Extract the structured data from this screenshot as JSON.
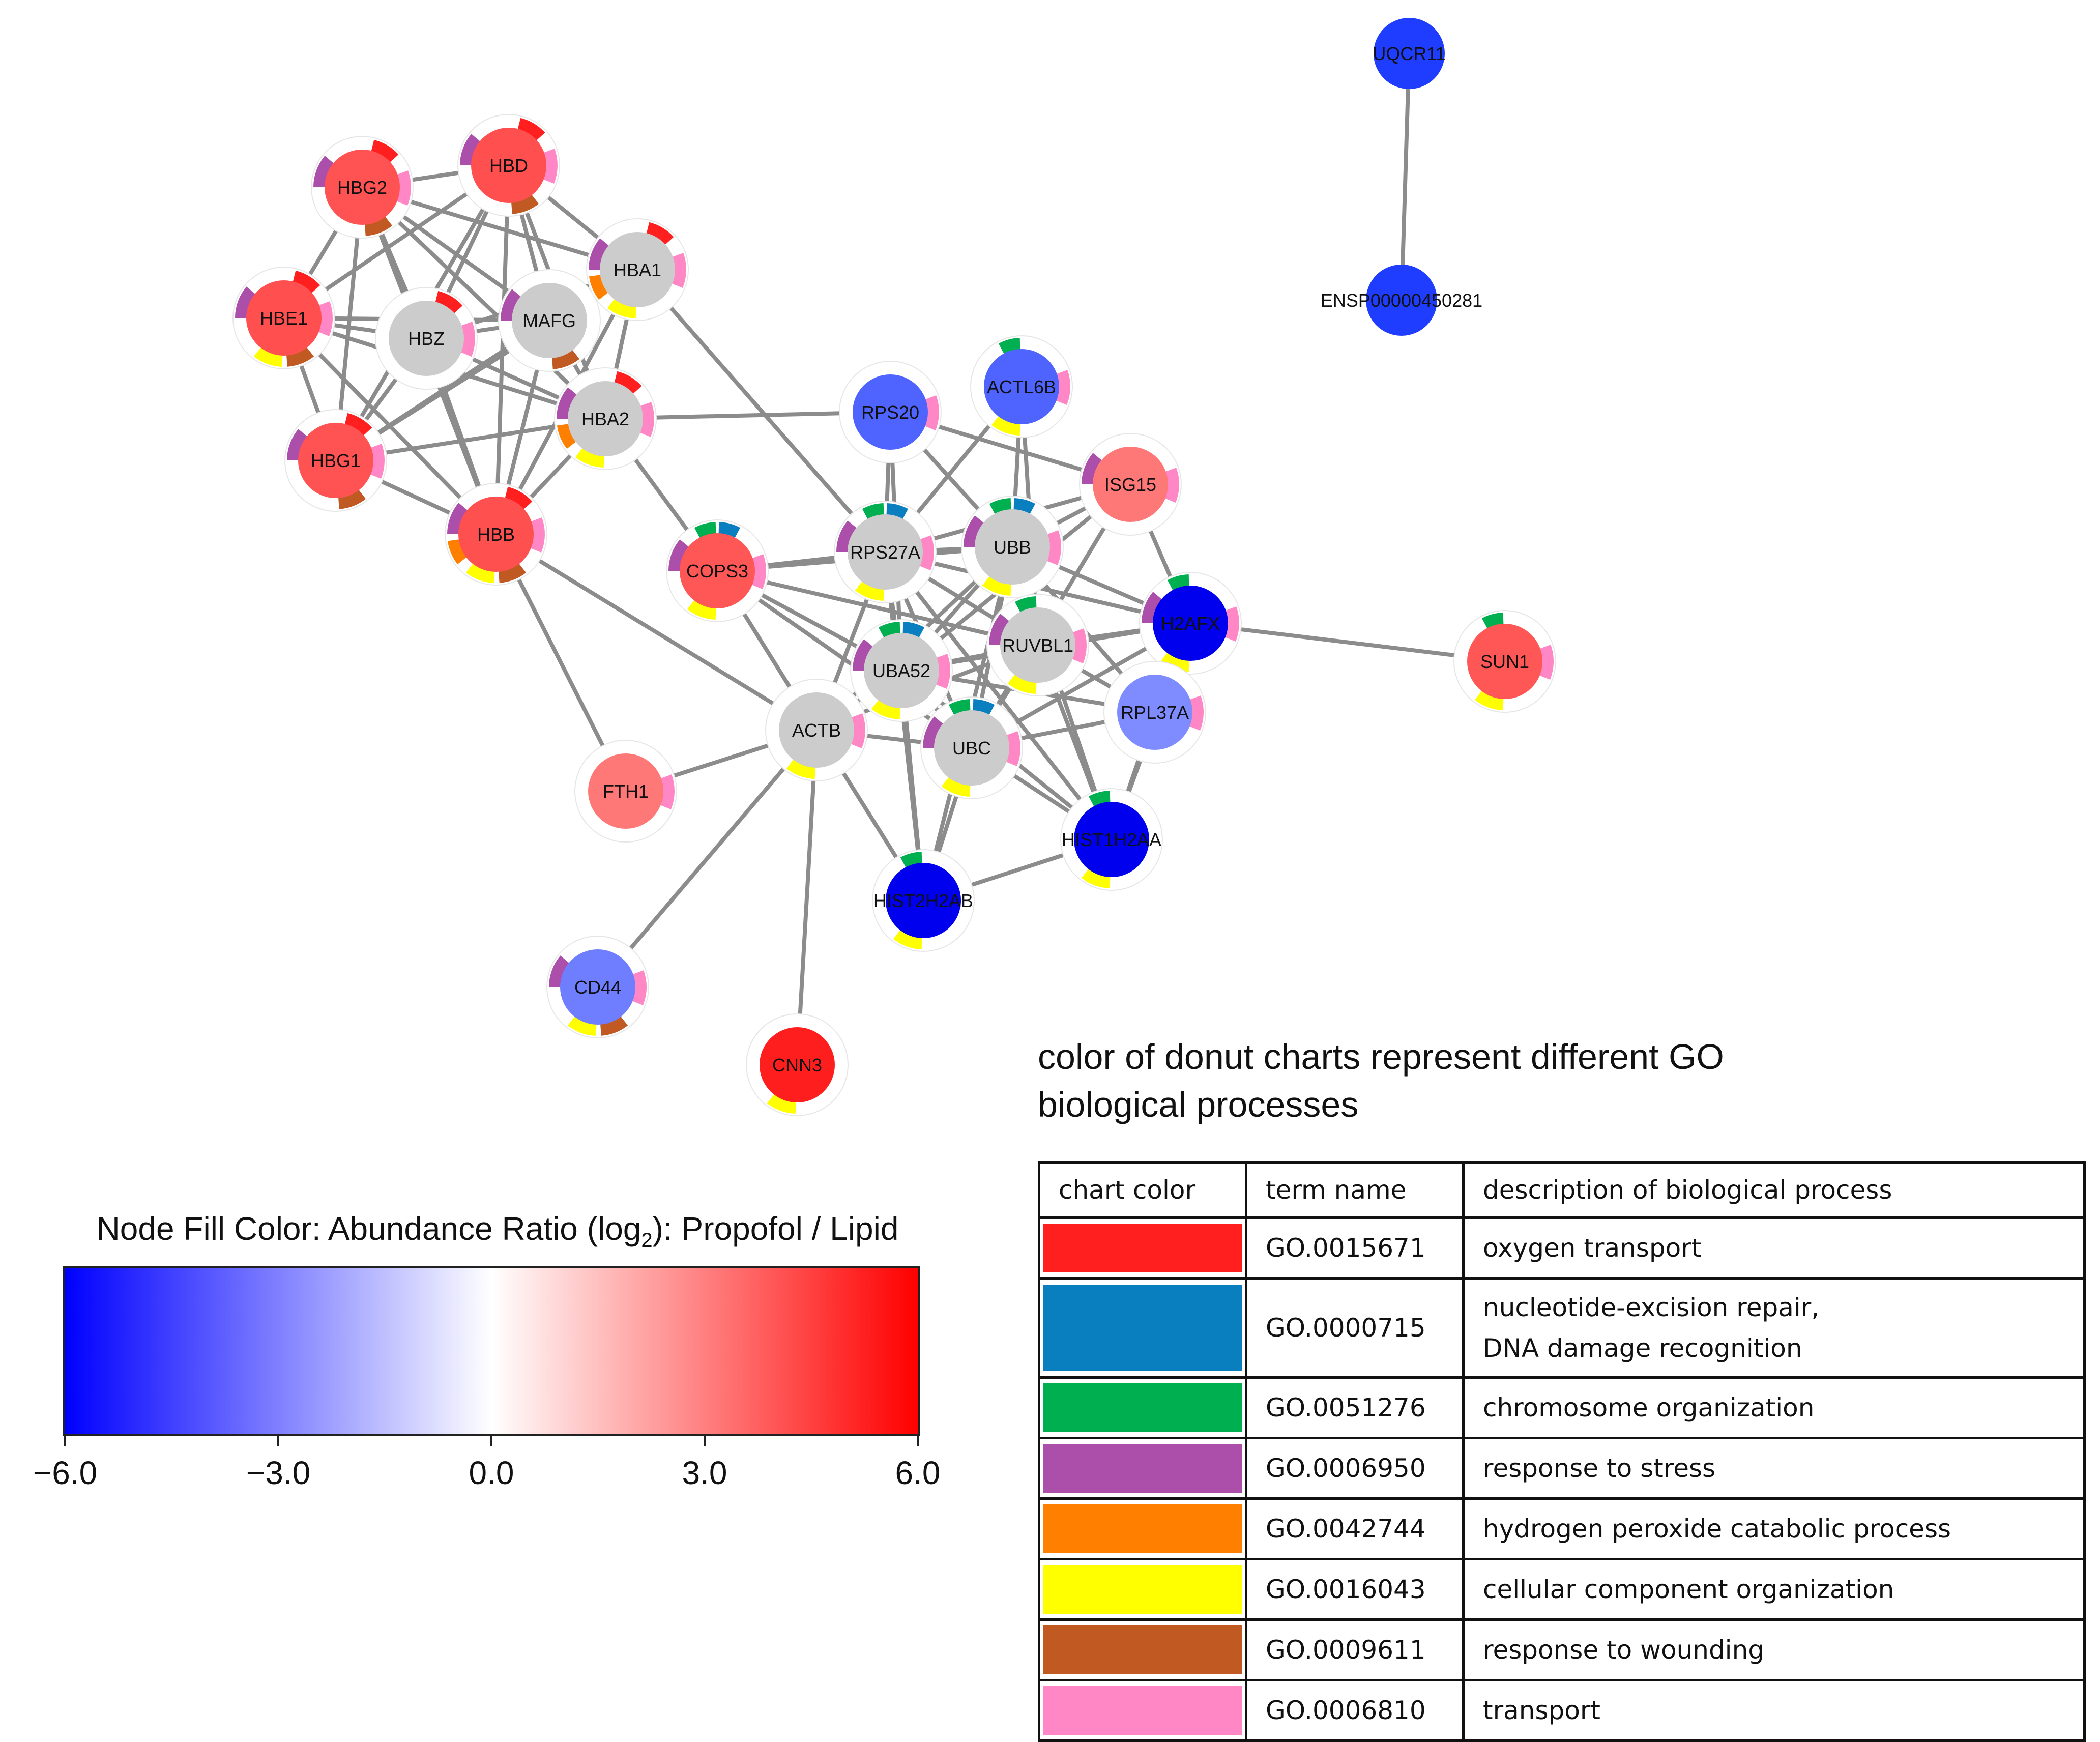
{
  "network": {
    "nodes": [
      {
        "id": "HBD",
        "color": "#ff4f4f",
        "go": [
          "GO.0015671",
          "GO.0006950",
          "GO.0009611",
          "GO.0006810"
        ]
      },
      {
        "id": "HBG2",
        "color": "#ff5252",
        "go": [
          "GO.0015671",
          "GO.0006950",
          "GO.0009611",
          "GO.0006810"
        ]
      },
      {
        "id": "HBE1",
        "color": "#ff4f4f",
        "go": [
          "GO.0015671",
          "GO.0006950",
          "GO.0016043",
          "GO.0009611",
          "GO.0006810"
        ]
      },
      {
        "id": "HBZ",
        "color": "#cccccc",
        "go": [
          "GO.0015671",
          "GO.0006810"
        ]
      },
      {
        "id": "MAFG",
        "color": "#cccccc",
        "go": [
          "GO.0006950",
          "GO.0009611"
        ]
      },
      {
        "id": "HBA1",
        "color": "#cccccc",
        "go": [
          "GO.0015671",
          "GO.0006950",
          "GO.0042744",
          "GO.0016043",
          "GO.0006810"
        ]
      },
      {
        "id": "HBG1",
        "color": "#ff5252",
        "go": [
          "GO.0015671",
          "GO.0006950",
          "GO.0009611",
          "GO.0006810"
        ]
      },
      {
        "id": "HBA2",
        "color": "#cccccc",
        "go": [
          "GO.0015671",
          "GO.0006950",
          "GO.0042744",
          "GO.0016043",
          "GO.0006810"
        ]
      },
      {
        "id": "HBB",
        "color": "#ff5050",
        "go": [
          "GO.0015671",
          "GO.0006950",
          "GO.0042744",
          "GO.0016043",
          "GO.0009611",
          "GO.0006810"
        ]
      },
      {
        "id": "RPS20",
        "color": "#4f64ff",
        "go": [
          "GO.0006810"
        ]
      },
      {
        "id": "ACTL6B",
        "color": "#4f64ff",
        "go": [
          "GO.0051276",
          "GO.0016043",
          "GO.0006810"
        ]
      },
      {
        "id": "ISG15",
        "color": "#ff7878",
        "go": [
          "GO.0006950",
          "GO.0006810"
        ]
      },
      {
        "id": "COPS3",
        "color": "#ff5656",
        "go": [
          "GO.0051276",
          "GO.0000715",
          "GO.0006950",
          "GO.0016043",
          "GO.0006810"
        ]
      },
      {
        "id": "RPS27A",
        "color": "#cccccc",
        "go": [
          "GO.0051276",
          "GO.0000715",
          "GO.0006950",
          "GO.0016043",
          "GO.0006810"
        ]
      },
      {
        "id": "UBB",
        "color": "#cccccc",
        "go": [
          "GO.0051276",
          "GO.0000715",
          "GO.0006950",
          "GO.0016043",
          "GO.0006810"
        ]
      },
      {
        "id": "H2AFX",
        "color": "#0000ee",
        "go": [
          "GO.0051276",
          "GO.0006950",
          "GO.0016043",
          "GO.0006810"
        ]
      },
      {
        "id": "SUN1",
        "color": "#ff5656",
        "go": [
          "GO.0051276",
          "GO.0016043",
          "GO.0006810"
        ]
      },
      {
        "id": "UBA52",
        "color": "#cccccc",
        "go": [
          "GO.0051276",
          "GO.0000715",
          "GO.0006950",
          "GO.0016043",
          "GO.0006810"
        ]
      },
      {
        "id": "RUVBL1",
        "color": "#cccccc",
        "go": [
          "GO.0051276",
          "GO.0006950",
          "GO.0016043",
          "GO.0006810"
        ]
      },
      {
        "id": "RPL37A",
        "color": "#7f8cff",
        "go": [
          "GO.0006810"
        ]
      },
      {
        "id": "ACTB",
        "color": "#cccccc",
        "go": [
          "GO.0016043",
          "GO.0006810"
        ]
      },
      {
        "id": "UBC",
        "color": "#cccccc",
        "go": [
          "GO.0051276",
          "GO.0000715",
          "GO.0006950",
          "GO.0016043",
          "GO.0006810"
        ]
      },
      {
        "id": "FTH1",
        "color": "#ff7878",
        "go": [
          "GO.0006810"
        ]
      },
      {
        "id": "HIST1H2AA",
        "color": "#0000ee",
        "go": [
          "GO.0051276",
          "GO.0016043"
        ]
      },
      {
        "id": "HIST2H2AB",
        "color": "#0000ee",
        "go": [
          "GO.0051276",
          "GO.0016043"
        ]
      },
      {
        "id": "CD44",
        "color": "#6e7eff",
        "go": [
          "GO.0006950",
          "GO.0016043",
          "GO.0009611",
          "GO.0006810"
        ]
      },
      {
        "id": "CNN3",
        "color": "#ff1e1e",
        "go": [
          "GO.0016043"
        ]
      },
      {
        "id": "UQCR11",
        "color": "#1f3dff",
        "go": []
      },
      {
        "id": "ENSP00000450281",
        "color": "#1f3dff",
        "go": []
      }
    ],
    "edges": [
      [
        "HBD",
        "HBG2"
      ],
      [
        "HBD",
        "HBE1"
      ],
      [
        "HBD",
        "HBZ"
      ],
      [
        "HBD",
        "MAFG"
      ],
      [
        "HBD",
        "HBA1"
      ],
      [
        "HBD",
        "HBG1"
      ],
      [
        "HBD",
        "HBA2"
      ],
      [
        "HBD",
        "HBB"
      ],
      [
        "HBG2",
        "HBE1"
      ],
      [
        "HBG2",
        "HBZ"
      ],
      [
        "HBG2",
        "MAFG"
      ],
      [
        "HBG2",
        "HBA1"
      ],
      [
        "HBG2",
        "HBG1"
      ],
      [
        "HBG2",
        "HBA2"
      ],
      [
        "HBG2",
        "HBB"
      ],
      [
        "HBE1",
        "HBZ"
      ],
      [
        "HBE1",
        "MAFG"
      ],
      [
        "HBE1",
        "HBG1"
      ],
      [
        "HBE1",
        "HBA2"
      ],
      [
        "HBE1",
        "HBB"
      ],
      [
        "HBZ",
        "MAFG"
      ],
      [
        "HBZ",
        "HBA1"
      ],
      [
        "HBZ",
        "HBG1"
      ],
      [
        "HBZ",
        "HBA2"
      ],
      [
        "HBZ",
        "HBB"
      ],
      [
        "MAFG",
        "HBA1"
      ],
      [
        "MAFG",
        "HBG1"
      ],
      [
        "MAFG",
        "HBA2"
      ],
      [
        "MAFG",
        "HBB"
      ],
      [
        "HBA1",
        "HBG1"
      ],
      [
        "HBA1",
        "HBA2"
      ],
      [
        "HBA1",
        "HBB"
      ],
      [
        "HBA1",
        "RPS27A"
      ],
      [
        "HBG1",
        "HBA2"
      ],
      [
        "HBG1",
        "HBB"
      ],
      [
        "HBA2",
        "HBB"
      ],
      [
        "HBA2",
        "RPS20"
      ],
      [
        "HBA2",
        "COPS3"
      ],
      [
        "HBB",
        "FTH1"
      ],
      [
        "HBB",
        "ACTB"
      ],
      [
        "RPS20",
        "RPS27A"
      ],
      [
        "RPS20",
        "UBB"
      ],
      [
        "RPS20",
        "ISG15"
      ],
      [
        "RPS20",
        "UBA52"
      ],
      [
        "ACTL6B",
        "UBB"
      ],
      [
        "ACTL6B",
        "RPS27A"
      ],
      [
        "ACTL6B",
        "RUVBL1"
      ],
      [
        "ISG15",
        "UBB"
      ],
      [
        "ISG15",
        "RPS27A"
      ],
      [
        "ISG15",
        "UBC"
      ],
      [
        "ISG15",
        "UBA52"
      ],
      [
        "ISG15",
        "H2AFX"
      ],
      [
        "COPS3",
        "RPS27A"
      ],
      [
        "COPS3",
        "UBB"
      ],
      [
        "COPS3",
        "UBA52"
      ],
      [
        "COPS3",
        "UBC"
      ],
      [
        "COPS3",
        "ACTB"
      ],
      [
        "COPS3",
        "RUVBL1"
      ],
      [
        "RPS27A",
        "UBB"
      ],
      [
        "RPS27A",
        "UBA52"
      ],
      [
        "RPS27A",
        "UBC"
      ],
      [
        "RPS27A",
        "RUVBL1"
      ],
      [
        "RPS27A",
        "H2AFX"
      ],
      [
        "RPS27A",
        "ACTB"
      ],
      [
        "RPS27A",
        "HIST1H2AA"
      ],
      [
        "RPS27A",
        "HIST2H2AB"
      ],
      [
        "UBB",
        "UBA52"
      ],
      [
        "UBB",
        "UBC"
      ],
      [
        "UBB",
        "RUVBL1"
      ],
      [
        "UBB",
        "H2AFX"
      ],
      [
        "UBB",
        "ACTB"
      ],
      [
        "UBB",
        "HIST1H2AA"
      ],
      [
        "UBB",
        "HIST2H2AB"
      ],
      [
        "UBB",
        "RPL37A"
      ],
      [
        "H2AFX",
        "SUN1"
      ],
      [
        "H2AFX",
        "UBC"
      ],
      [
        "H2AFX",
        "UBA52"
      ],
      [
        "H2AFX",
        "RUVBL1"
      ],
      [
        "H2AFX",
        "HIST1H2AA"
      ],
      [
        "UBA52",
        "UBC"
      ],
      [
        "UBA52",
        "RUVBL1"
      ],
      [
        "UBA52",
        "ACTB"
      ],
      [
        "UBA52",
        "HIST1H2AA"
      ],
      [
        "UBA52",
        "HIST2H2AB"
      ],
      [
        "UBA52",
        "RPL37A"
      ],
      [
        "RUVBL1",
        "UBC"
      ],
      [
        "RUVBL1",
        "RPL37A"
      ],
      [
        "RUVBL1",
        "HIST1H2AA"
      ],
      [
        "RUVBL1",
        "ACTB"
      ],
      [
        "RPL37A",
        "HIST1H2AA"
      ],
      [
        "RPL37A",
        "UBC"
      ],
      [
        "ACTB",
        "UBC"
      ],
      [
        "ACTB",
        "FTH1"
      ],
      [
        "ACTB",
        "CD44"
      ],
      [
        "ACTB",
        "CNN3"
      ],
      [
        "ACTB",
        "HIST2H2AB"
      ],
      [
        "UBC",
        "HIST1H2AA"
      ],
      [
        "UBC",
        "HIST2H2AB"
      ],
      [
        "HIST1H2AA",
        "HIST2H2AB"
      ],
      [
        "UQCR11",
        "ENSP00000450281"
      ]
    ]
  },
  "scale": {
    "title": "Node Fill Color: Abundance Ratio (log",
    "title_sub": "2",
    "title_tail": "): Propofol / Lipid",
    "min": -6.0,
    "max": 6.0,
    "ticks": [
      "−6.0",
      "−3.0",
      "0.0",
      "3.0",
      "6.0"
    ],
    "colors": {
      "low": "#0000ff",
      "mid": "#ffffff",
      "high": "#ff0000"
    }
  },
  "go_legend": {
    "heading_line1": "color of donut charts represent different GO",
    "heading_line2": "biological processes",
    "headers": [
      "chart color",
      "term name",
      "description of biological process"
    ],
    "rows": [
      {
        "color": "#ff1f1f",
        "term": "GO.0015671",
        "desc": [
          "oxygen transport"
        ]
      },
      {
        "color": "#0a7fbf",
        "term": "GO.0000715",
        "desc": [
          "nucleotide-excision repair,",
          "DNA damage recognition"
        ]
      },
      {
        "color": "#00b050",
        "term": "GO.0051276",
        "desc": [
          "chromosome organization"
        ]
      },
      {
        "color": "#ab4fab",
        "term": "GO.0006950",
        "desc": [
          "response to stress"
        ]
      },
      {
        "color": "#ff8000",
        "term": "GO.0042744",
        "desc": [
          "hydrogen peroxide catabolic process"
        ]
      },
      {
        "color": "#ffff00",
        "term": "GO.0016043",
        "desc": [
          "cellular component organization"
        ]
      },
      {
        "color": "#c05a22",
        "term": "GO.0009611",
        "desc": [
          "response to wounding"
        ]
      },
      {
        "color": "#ff87c6",
        "term": "GO.0006810",
        "desc": [
          "transport"
        ]
      }
    ]
  }
}
